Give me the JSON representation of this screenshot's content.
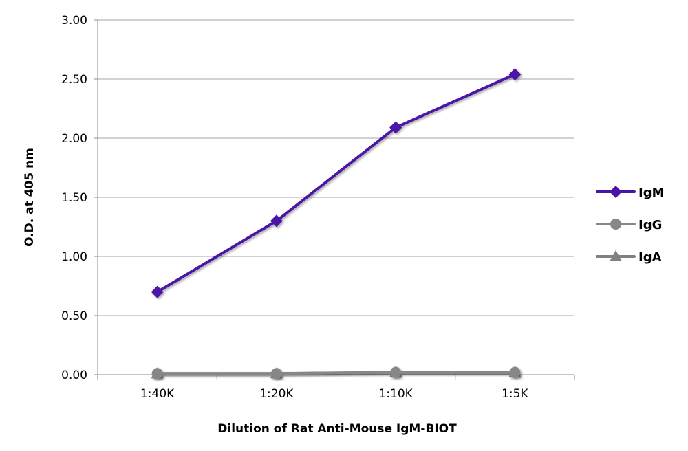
{
  "chart_data": {
    "type": "line",
    "title": "",
    "xlabel": "Dilution of Rat Anti-Mouse IgM-BIOT",
    "ylabel": "O.D. at 405 nm",
    "categories": [
      "1:40K",
      "1:20K",
      "1:10K",
      "1:5K"
    ],
    "ylim": [
      0,
      3
    ],
    "yticks": [
      "0.00",
      "0.50",
      "1.00",
      "1.50",
      "2.00",
      "2.50",
      "3.00"
    ],
    "grid": true,
    "legend_position": "right",
    "series": [
      {
        "name": "IgM",
        "values": [
          0.7,
          1.3,
          2.09,
          2.54
        ],
        "color": "#4B12A6",
        "marker": "diamond"
      },
      {
        "name": "IgG",
        "values": [
          0.01,
          0.01,
          0.02,
          0.02
        ],
        "color": "#878787",
        "marker": "circle"
      },
      {
        "name": "IgA",
        "values": [
          0.01,
          0.01,
          0.02,
          0.02
        ],
        "color": "#808080",
        "marker": "triangle"
      }
    ]
  }
}
